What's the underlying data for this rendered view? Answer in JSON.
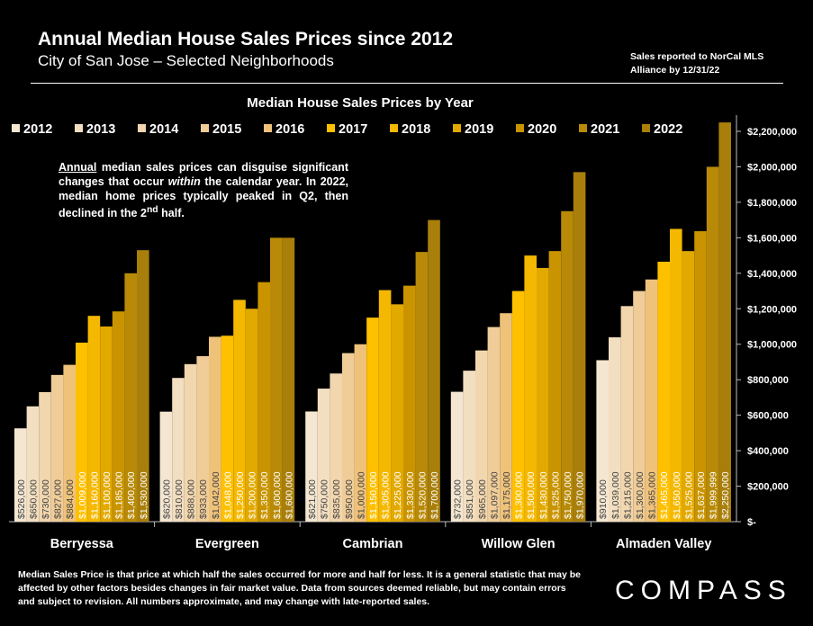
{
  "header": {
    "title": "Annual Median House Sales Prices since 2012",
    "subtitle": "City of San Jose – Selected Neighborhoods",
    "note": "Sales reported to NorCal MLS Alliance by 12/31/22"
  },
  "annotation": {
    "lead": "Annual",
    "rest": "median sales prices can disguise significant changes that occur",
    "emph": "within",
    "rest2": "the calendar year. In 2022, median home prices typically peaked in Q2, then declined in the 2",
    "sup": "nd",
    "end": "half."
  },
  "footnote": "Median Sales Price is that price at which half the sales occurred for more and half for less. It is a general statistic that may be affected by other factors besides changes in fair market value. Data from sources deemed reliable, but may contain errors and subject to revision. All numbers approximate, and may change with late-reported sales.",
  "logo": "COMPASS",
  "chart_data": {
    "type": "bar",
    "title": "Median House Sales Prices by Year",
    "categories": [
      "Berryessa",
      "Evergreen",
      "Cambrian",
      "Willow Glen",
      "Almaden Valley"
    ],
    "series": [
      {
        "name": "2012",
        "color": "#F4E6D0",
        "values": [
          526000,
          620000,
          621000,
          732000,
          910000
        ]
      },
      {
        "name": "2013",
        "color": "#F2DEC0",
        "values": [
          650000,
          810000,
          750000,
          851000,
          1039000
        ]
      },
      {
        "name": "2014",
        "color": "#F1D6AE",
        "values": [
          730000,
          888000,
          835000,
          965000,
          1215000
        ]
      },
      {
        "name": "2015",
        "color": "#EFCC98",
        "values": [
          827000,
          933000,
          950000,
          1097000,
          1300000
        ]
      },
      {
        "name": "2016",
        "color": "#EFC27A",
        "values": [
          884000,
          1042000,
          1000000,
          1175000,
          1365000
        ]
      },
      {
        "name": "2017",
        "color": "#FFC000",
        "values": [
          1009000,
          1048000,
          1150000,
          1300000,
          1465000
        ]
      },
      {
        "name": "2018",
        "color": "#F5B800",
        "values": [
          1160000,
          1250000,
          1305000,
          1500000,
          1650000
        ]
      },
      {
        "name": "2019",
        "color": "#E2A900",
        "values": [
          1100000,
          1200000,
          1225000,
          1430000,
          1525000
        ]
      },
      {
        "name": "2020",
        "color": "#C99400",
        "values": [
          1185000,
          1350000,
          1330000,
          1525000,
          1637000
        ]
      },
      {
        "name": "2021",
        "color": "#B88A08",
        "values": [
          1400000,
          1600000,
          1520000,
          1750000,
          1999999
        ]
      },
      {
        "name": "2022",
        "color": "#A97F0C",
        "values": [
          1530000,
          1600000,
          1700000,
          1970000,
          2250000
        ]
      }
    ],
    "y_ticks": [
      "$-",
      "$200,000",
      "$400,000",
      "$600,000",
      "$800,000",
      "$1,000,000",
      "$1,200,000",
      "$1,400,000",
      "$1,600,000",
      "$1,800,000",
      "$2,000,000",
      "$2,200,000"
    ],
    "data_labels": [
      [
        "$526,000",
        "$650,000",
        "$730,000",
        "$827,000",
        "$884,000",
        "$1,009,000",
        "$1,160,000",
        "$1,100,000",
        "$1,185,000",
        "$1,400,000",
        "$1,530,000"
      ],
      [
        "$620,000",
        "$810,000",
        "$888,000",
        "$933,000",
        "$1,042,000",
        "$1,048,000",
        "$1,250,000",
        "$1,200,000",
        "$1,350,000",
        "$1,600,000",
        "$1,600,000"
      ],
      [
        "$621,000",
        "$750,000",
        "$835,000",
        "$950,000",
        "$1,000,000",
        "$1,150,000",
        "$1,305,000",
        "$1,225,000",
        "$1,330,000",
        "$1,520,000",
        "$1,700,000"
      ],
      [
        "$732,000",
        "$851,000",
        "$965,000",
        "$1,097,000",
        "$1,175,000",
        "$1,300,000",
        "$1,500,000",
        "$1,430,000",
        "$1,525,000",
        "$1,750,000",
        "$1,970,000"
      ],
      [
        "$910,000",
        "$1,039,000",
        "$1,215,000",
        "$1,300,000",
        "$1,365,000",
        "$1,465,000",
        "$1,650,000",
        "$1,525,000",
        "$1,637,000",
        "$1,999,999",
        "$2,250,000"
      ]
    ],
    "ylim": [
      0,
      2250000
    ],
    "legend_position": "top"
  }
}
